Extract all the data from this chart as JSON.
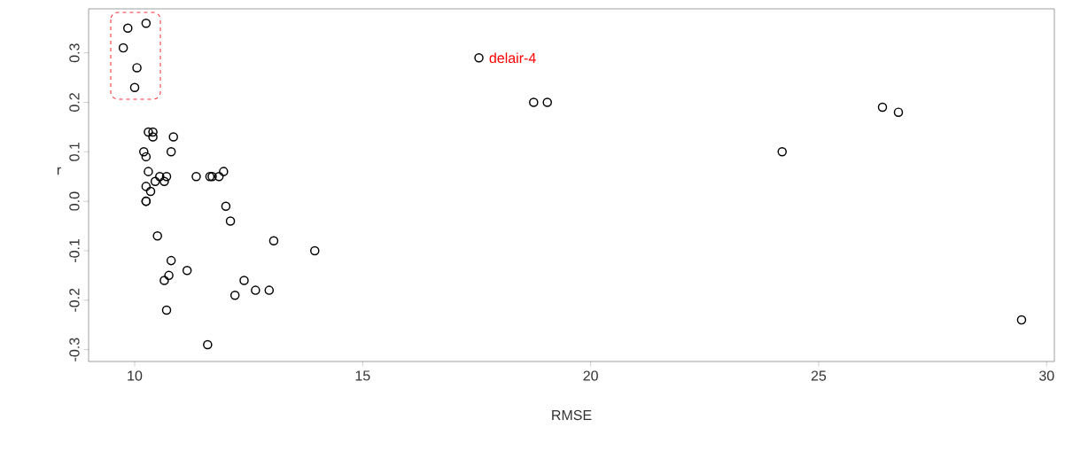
{
  "chart_data": {
    "type": "scatter",
    "xlabel": "RMSE",
    "ylabel": "r",
    "xlim": [
      8.99,
      30.17
    ],
    "ylim": [
      -0.324,
      0.389
    ],
    "xticks": [
      10,
      15,
      20,
      25,
      30
    ],
    "yticks": [
      {
        "value": -0.3,
        "label": "-0.3"
      },
      {
        "value": -0.2,
        "label": "-0.2"
      },
      {
        "value": -0.1,
        "label": "-0.1"
      },
      {
        "value": 0,
        "label": "0.0"
      },
      {
        "value": 0.1,
        "label": "0.1"
      },
      {
        "value": 0.2,
        "label": "0.2"
      },
      {
        "value": 0.3,
        "label": "0.3"
      }
    ],
    "marker": "circle",
    "series": [
      {
        "color": "#000000",
        "x": [
          9.85,
          10.25,
          9.75,
          10.05,
          10.0,
          17.55,
          18.75,
          19.05,
          24.2,
          26.4,
          26.75,
          29.45,
          10.3,
          10.4,
          10.4,
          10.85,
          10.2,
          10.25,
          10.8,
          10.3,
          10.55,
          10.7,
          10.65,
          10.45,
          10.25,
          10.35,
          11.35,
          11.65,
          11.85,
          11.95,
          11.7,
          10.25,
          10.25,
          12.0,
          12.1,
          10.5,
          13.05,
          13.95,
          10.8,
          11.15,
          10.75,
          10.65,
          12.4,
          12.2,
          12.65,
          12.95,
          10.7,
          11.6
        ],
        "values": [
          0.35,
          0.36,
          0.31,
          0.27,
          0.23,
          0.29,
          0.2,
          0.2,
          0.1,
          0.19,
          0.18,
          -0.24,
          0.14,
          0.14,
          0.13,
          0.13,
          0.1,
          0.09,
          0.1,
          0.06,
          0.05,
          0.05,
          0.04,
          0.04,
          0.03,
          0.02,
          0.05,
          0.05,
          0.05,
          0.06,
          0.05,
          0.0,
          0.0,
          -0.01,
          -0.04,
          -0.07,
          -0.08,
          -0.1,
          -0.12,
          -0.14,
          -0.15,
          -0.16,
          -0.16,
          -0.19,
          -0.18,
          -0.18,
          -0.22,
          -0.29
        ]
      }
    ],
    "annotations": [
      {
        "text": "delair-4",
        "x": 17.55,
        "y": 0.29
      }
    ]
  }
}
